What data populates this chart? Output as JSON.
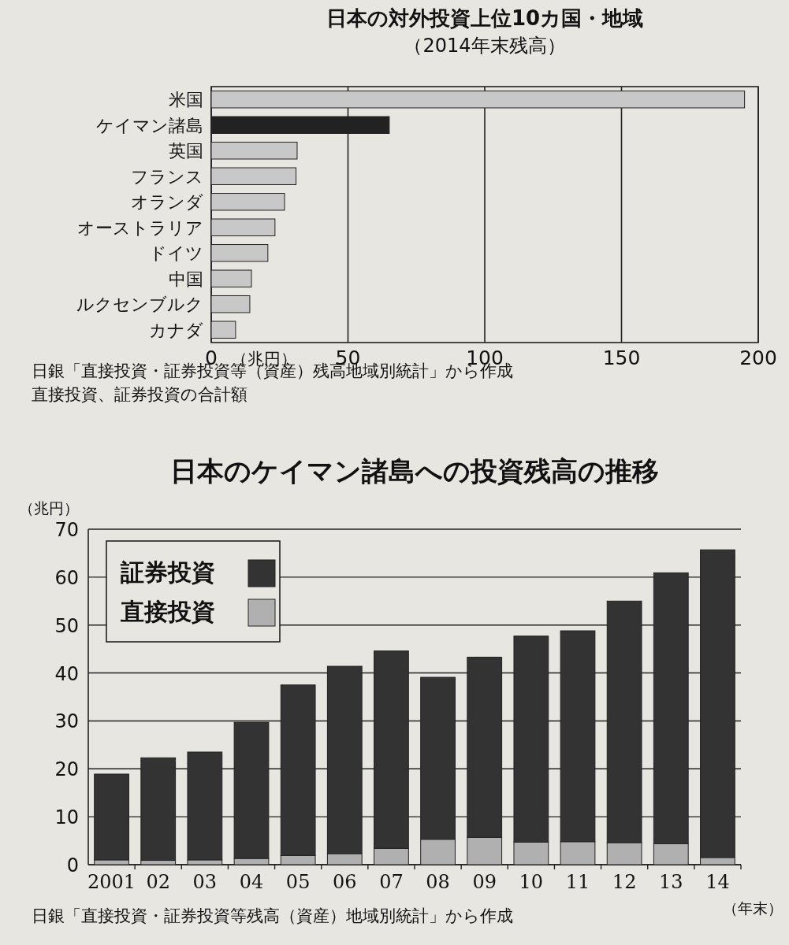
{
  "chart_data": [
    {
      "type": "bar",
      "orientation": "horizontal",
      "title": "日本の対外投資上位10カ国・地域",
      "subtitle": "（2014年末残高）",
      "xlabel": "（兆円）",
      "categories": [
        "米国",
        "ケイマン諸島",
        "英国",
        "フランス",
        "オランダ",
        "オーストラリア",
        "ドイツ",
        "中国",
        "ルクセンブルク",
        "カナダ"
      ],
      "values": [
        195,
        65.1,
        31.4,
        31,
        26.8,
        23.3,
        20.7,
        14.7,
        14.1,
        8.9
      ],
      "colors": [
        "#c8c8c8",
        "#222222",
        "#c8c8c8",
        "#c8c8c8",
        "#c8c8c8",
        "#c8c8c8",
        "#c8c8c8",
        "#c8c8c8",
        "#c8c8c8",
        "#c8c8c8"
      ],
      "xlim": [
        0,
        200
      ],
      "xticks": [
        0,
        50,
        100,
        150,
        200
      ],
      "grid": "x",
      "annotations": [
        "日銀「直接投資・証券投資等（資産）残高地域別統計」から作成",
        "直接投資、証券投資の合計額"
      ]
    },
    {
      "type": "bar",
      "stacked": true,
      "title": "日本のケイマン諸島への投資残高の推移",
      "ylabel": "（兆円）",
      "xlabel": "（年末）",
      "categories": [
        "2001",
        "02",
        "03",
        "04",
        "05",
        "06",
        "07",
        "08",
        "09",
        "10",
        "11",
        "12",
        "13",
        "14"
      ],
      "series": [
        {
          "name": "直接投資",
          "color": "#b0b0b0",
          "values": [
            1.0,
            0.9,
            1.0,
            1.3,
            1.9,
            2.3,
            3.4,
            5.3,
            5.7,
            4.7,
            4.8,
            4.6,
            4.4,
            1.5
          ]
        },
        {
          "name": "証券投資",
          "color": "#333333",
          "values": [
            17.9,
            21.4,
            22.5,
            28.4,
            35.6,
            39.1,
            41.2,
            33.8,
            37.6,
            43.0,
            44.0,
            50.4,
            56.5,
            64.2
          ]
        }
      ],
      "ylim": [
        0,
        70
      ],
      "yticks": [
        0,
        10,
        20,
        30,
        40,
        50,
        60,
        70
      ],
      "grid": "y",
      "legend": "top left",
      "annotations": [
        "日銀「直接投資・証券投資等残高（資産）地域別統計」から作成"
      ]
    }
  ]
}
